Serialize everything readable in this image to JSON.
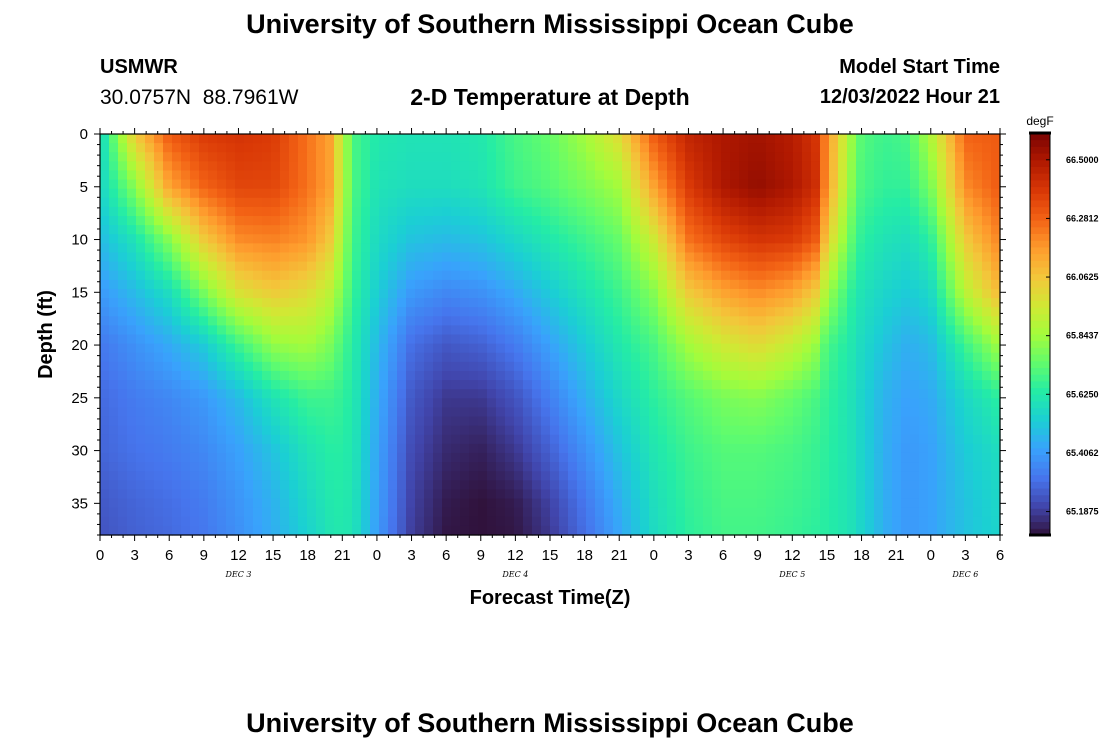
{
  "header": {
    "title": "University of Southern Mississippi Ocean Cube",
    "station": "USMWR",
    "coordinates": "30.0757N  88.7961W",
    "plot_title": "2-D Temperature at Depth",
    "model_start_label": "Model Start Time",
    "model_start_value": "12/03/2022 Hour 21"
  },
  "footer": {
    "title": "University of Southern Mississippi Ocean Cube"
  },
  "chart_data": {
    "type": "heatmap",
    "title": "2-D Temperature at Depth",
    "xlabel": "Forecast Time(Z)",
    "ylabel": "Depth (ft)",
    "x_unit": "hours since 12/03/2022 00Z",
    "xlim": [
      0,
      78
    ],
    "ylim": [
      38,
      0
    ],
    "x_tick_step": 3,
    "x_tick_labels": [
      "0",
      "3",
      "6",
      "9",
      "12",
      "15",
      "18",
      "21",
      "0",
      "3",
      "6",
      "9",
      "12",
      "15",
      "18",
      "21",
      "0",
      "3",
      "6",
      "9",
      "12",
      "15",
      "18",
      "21",
      "0",
      "3",
      "6"
    ],
    "y_ticks": [
      0,
      5,
      10,
      15,
      20,
      25,
      30,
      35
    ],
    "y_tick_labels": [
      "0",
      "5",
      "10",
      "15",
      "20",
      "25",
      "30",
      "35"
    ],
    "day_labels": [
      {
        "label": "DEC 3",
        "x": 12
      },
      {
        "label": "DEC 4",
        "x": 36
      },
      {
        "label": "DEC 5",
        "x": 60
      },
      {
        "label": "DEC 6",
        "x": 75
      }
    ],
    "colorbar": {
      "unit": "degF",
      "range": [
        65.1,
        66.6
      ],
      "labels": [
        "66.5000",
        "66.2812",
        "66.0625",
        "65.8437",
        "65.6250",
        "65.4062",
        "65.1875"
      ],
      "label_values": [
        66.5,
        66.28125,
        66.0625,
        65.84375,
        65.625,
        65.40625,
        65.1875
      ],
      "colors": [
        "#30123b",
        "#4145ab",
        "#4675ed",
        "#39a2fc",
        "#1bcfd4",
        "#24eca6",
        "#61fc6c",
        "#a4fc3b",
        "#d1e834",
        "#f3c63a",
        "#fe9b2d",
        "#f36315",
        "#d93806",
        "#b11901",
        "#7a0402"
      ]
    },
    "x_nodes": [
      0,
      3,
      6,
      9,
      12,
      15,
      18,
      20,
      21,
      22,
      24,
      27,
      30,
      33,
      36,
      39,
      42,
      45,
      48,
      51,
      54,
      57,
      60,
      62,
      63,
      65,
      66,
      68,
      70,
      72,
      75,
      78
    ],
    "depth_nodes": [
      0,
      5,
      10,
      15,
      20,
      25,
      30,
      35,
      38
    ],
    "values": [
      [
        65.55,
        65.55,
        65.48,
        65.4,
        65.32,
        65.29,
        65.28,
        65.25,
        65.24
      ],
      [
        66.05,
        65.8,
        65.6,
        65.48,
        65.38,
        65.33,
        65.31,
        65.28,
        65.27
      ],
      [
        66.3,
        66.15,
        65.8,
        65.58,
        65.44,
        65.36,
        65.33,
        65.3,
        65.29
      ],
      [
        66.38,
        66.28,
        66.05,
        65.78,
        65.52,
        65.4,
        65.36,
        65.33,
        65.32
      ],
      [
        66.4,
        66.35,
        66.2,
        65.98,
        65.68,
        65.48,
        65.42,
        65.39,
        65.38
      ],
      [
        66.38,
        66.35,
        66.22,
        66.05,
        65.82,
        65.6,
        65.5,
        65.46,
        65.45
      ],
      [
        66.25,
        66.25,
        66.18,
        66.0,
        65.85,
        65.68,
        65.6,
        65.56,
        65.54
      ],
      [
        66.15,
        66.15,
        66.05,
        65.9,
        65.78,
        65.68,
        65.64,
        65.62,
        65.61
      ],
      [
        65.9,
        65.9,
        65.85,
        65.78,
        65.7,
        65.66,
        65.64,
        65.63,
        65.62
      ],
      [
        65.7,
        65.7,
        65.68,
        65.66,
        65.63,
        65.62,
        65.61,
        65.6,
        65.6
      ],
      [
        65.62,
        65.6,
        65.57,
        65.53,
        65.48,
        65.45,
        65.43,
        65.42,
        65.41
      ],
      [
        65.6,
        65.58,
        65.5,
        65.4,
        65.3,
        65.25,
        65.22,
        65.2,
        65.19
      ],
      [
        65.6,
        65.58,
        65.48,
        65.36,
        65.25,
        65.18,
        65.15,
        65.12,
        65.11
      ],
      [
        65.62,
        65.6,
        65.5,
        65.38,
        65.27,
        65.18,
        65.13,
        65.1,
        65.1
      ],
      [
        65.7,
        65.68,
        65.56,
        65.44,
        65.33,
        65.24,
        65.18,
        65.12,
        65.11
      ],
      [
        65.75,
        65.72,
        65.62,
        65.52,
        65.42,
        65.34,
        65.27,
        65.2,
        65.18
      ],
      [
        65.85,
        65.78,
        65.68,
        65.6,
        65.52,
        65.45,
        65.38,
        65.32,
        65.3
      ],
      [
        66.0,
        65.85,
        65.75,
        65.68,
        65.62,
        65.56,
        65.5,
        65.45,
        65.43
      ],
      [
        66.3,
        66.15,
        65.95,
        65.8,
        65.7,
        65.65,
        65.61,
        65.58,
        65.57
      ],
      [
        66.45,
        66.38,
        66.25,
        66.05,
        65.85,
        65.72,
        65.68,
        65.66,
        65.65
      ],
      [
        66.5,
        66.5,
        66.35,
        66.15,
        65.95,
        65.78,
        65.72,
        65.7,
        65.69
      ],
      [
        66.52,
        66.55,
        66.4,
        66.2,
        66.0,
        65.8,
        65.72,
        65.7,
        65.69
      ],
      [
        66.48,
        66.5,
        66.38,
        66.15,
        65.92,
        65.75,
        65.7,
        65.68,
        65.67
      ],
      [
        66.4,
        66.42,
        66.3,
        66.05,
        65.83,
        65.7,
        65.67,
        65.66,
        65.65
      ],
      [
        66.2,
        66.18,
        66.05,
        65.85,
        65.7,
        65.66,
        65.65,
        65.64,
        65.64
      ],
      [
        65.85,
        65.82,
        65.75,
        65.66,
        65.62,
        65.6,
        65.6,
        65.6,
        65.6
      ],
      [
        65.72,
        65.7,
        65.65,
        65.6,
        65.57,
        65.55,
        65.55,
        65.55,
        65.55
      ],
      [
        65.68,
        65.66,
        65.6,
        65.55,
        65.5,
        65.46,
        65.45,
        65.45,
        65.45
      ],
      [
        65.7,
        65.66,
        65.58,
        65.52,
        65.45,
        65.42,
        65.4,
        65.4,
        65.4
      ],
      [
        65.88,
        65.78,
        65.65,
        65.56,
        65.48,
        65.44,
        65.42,
        65.42,
        65.42
      ],
      [
        66.28,
        66.2,
        66.05,
        65.9,
        65.68,
        65.56,
        65.52,
        65.5,
        65.5
      ],
      [
        66.3,
        66.3,
        66.22,
        66.1,
        65.85,
        65.65,
        65.58,
        65.56,
        65.55
      ]
    ]
  }
}
